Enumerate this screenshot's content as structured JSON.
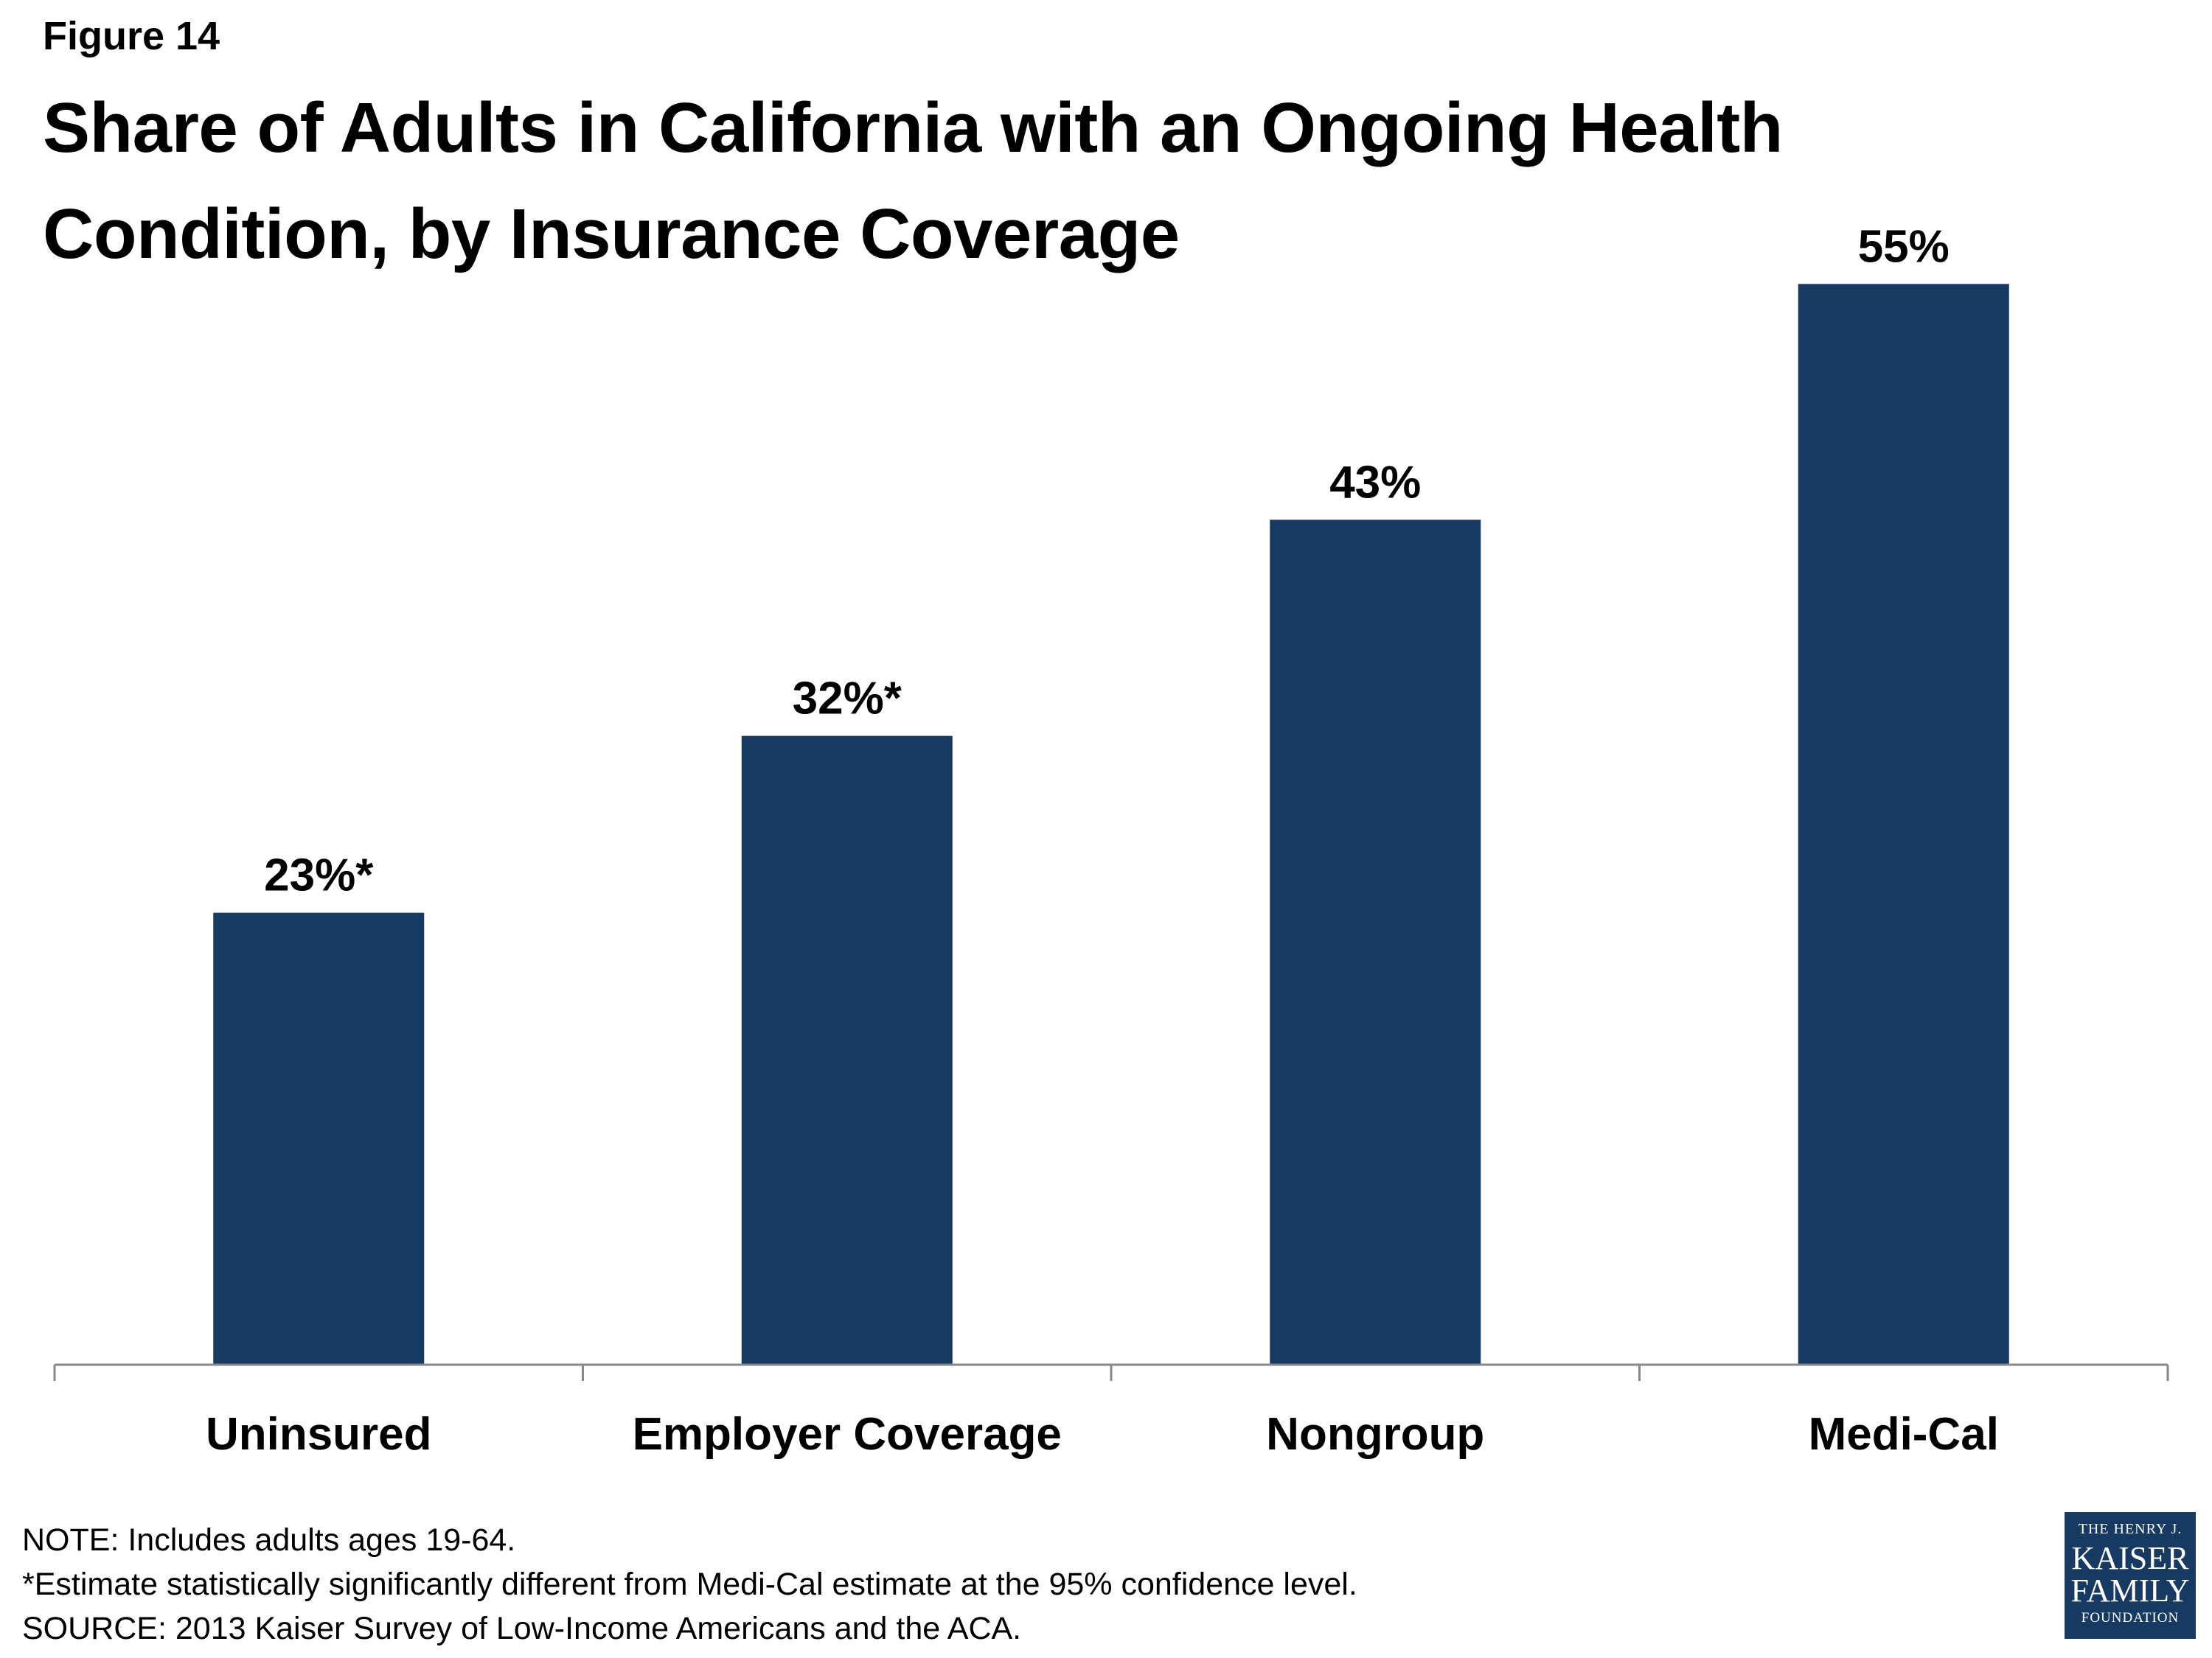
{
  "figure_label": "Figure 14",
  "chart_data": {
    "type": "bar",
    "title": "Share of Adults in California with an Ongoing Health Condition, by Insurance Coverage",
    "categories": [
      "Uninsured",
      "Employer Coverage",
      "Nongroup",
      "Medi-Cal"
    ],
    "values": [
      23,
      32,
      43,
      55
    ],
    "data_labels": [
      "23%*",
      "32%*",
      "43%",
      "55%"
    ],
    "xlabel": "",
    "ylabel": "",
    "ylim": [
      0,
      60
    ],
    "grid": false,
    "legend": "none",
    "bar_color": "#173a63"
  },
  "notes": [
    "NOTE: Includes adults ages 19-64.",
    "*Estimate statistically significantly different from Medi-Cal estimate  at the 95% confidence level.",
    "SOURCE: 2013 Kaiser Survey of Low-Income Americans and the ACA."
  ],
  "logo": {
    "line1": "THE HENRY J.",
    "line2": "KAISER",
    "line3": "FAMILY",
    "line4": "FOUNDATION",
    "color": "#173a63"
  }
}
